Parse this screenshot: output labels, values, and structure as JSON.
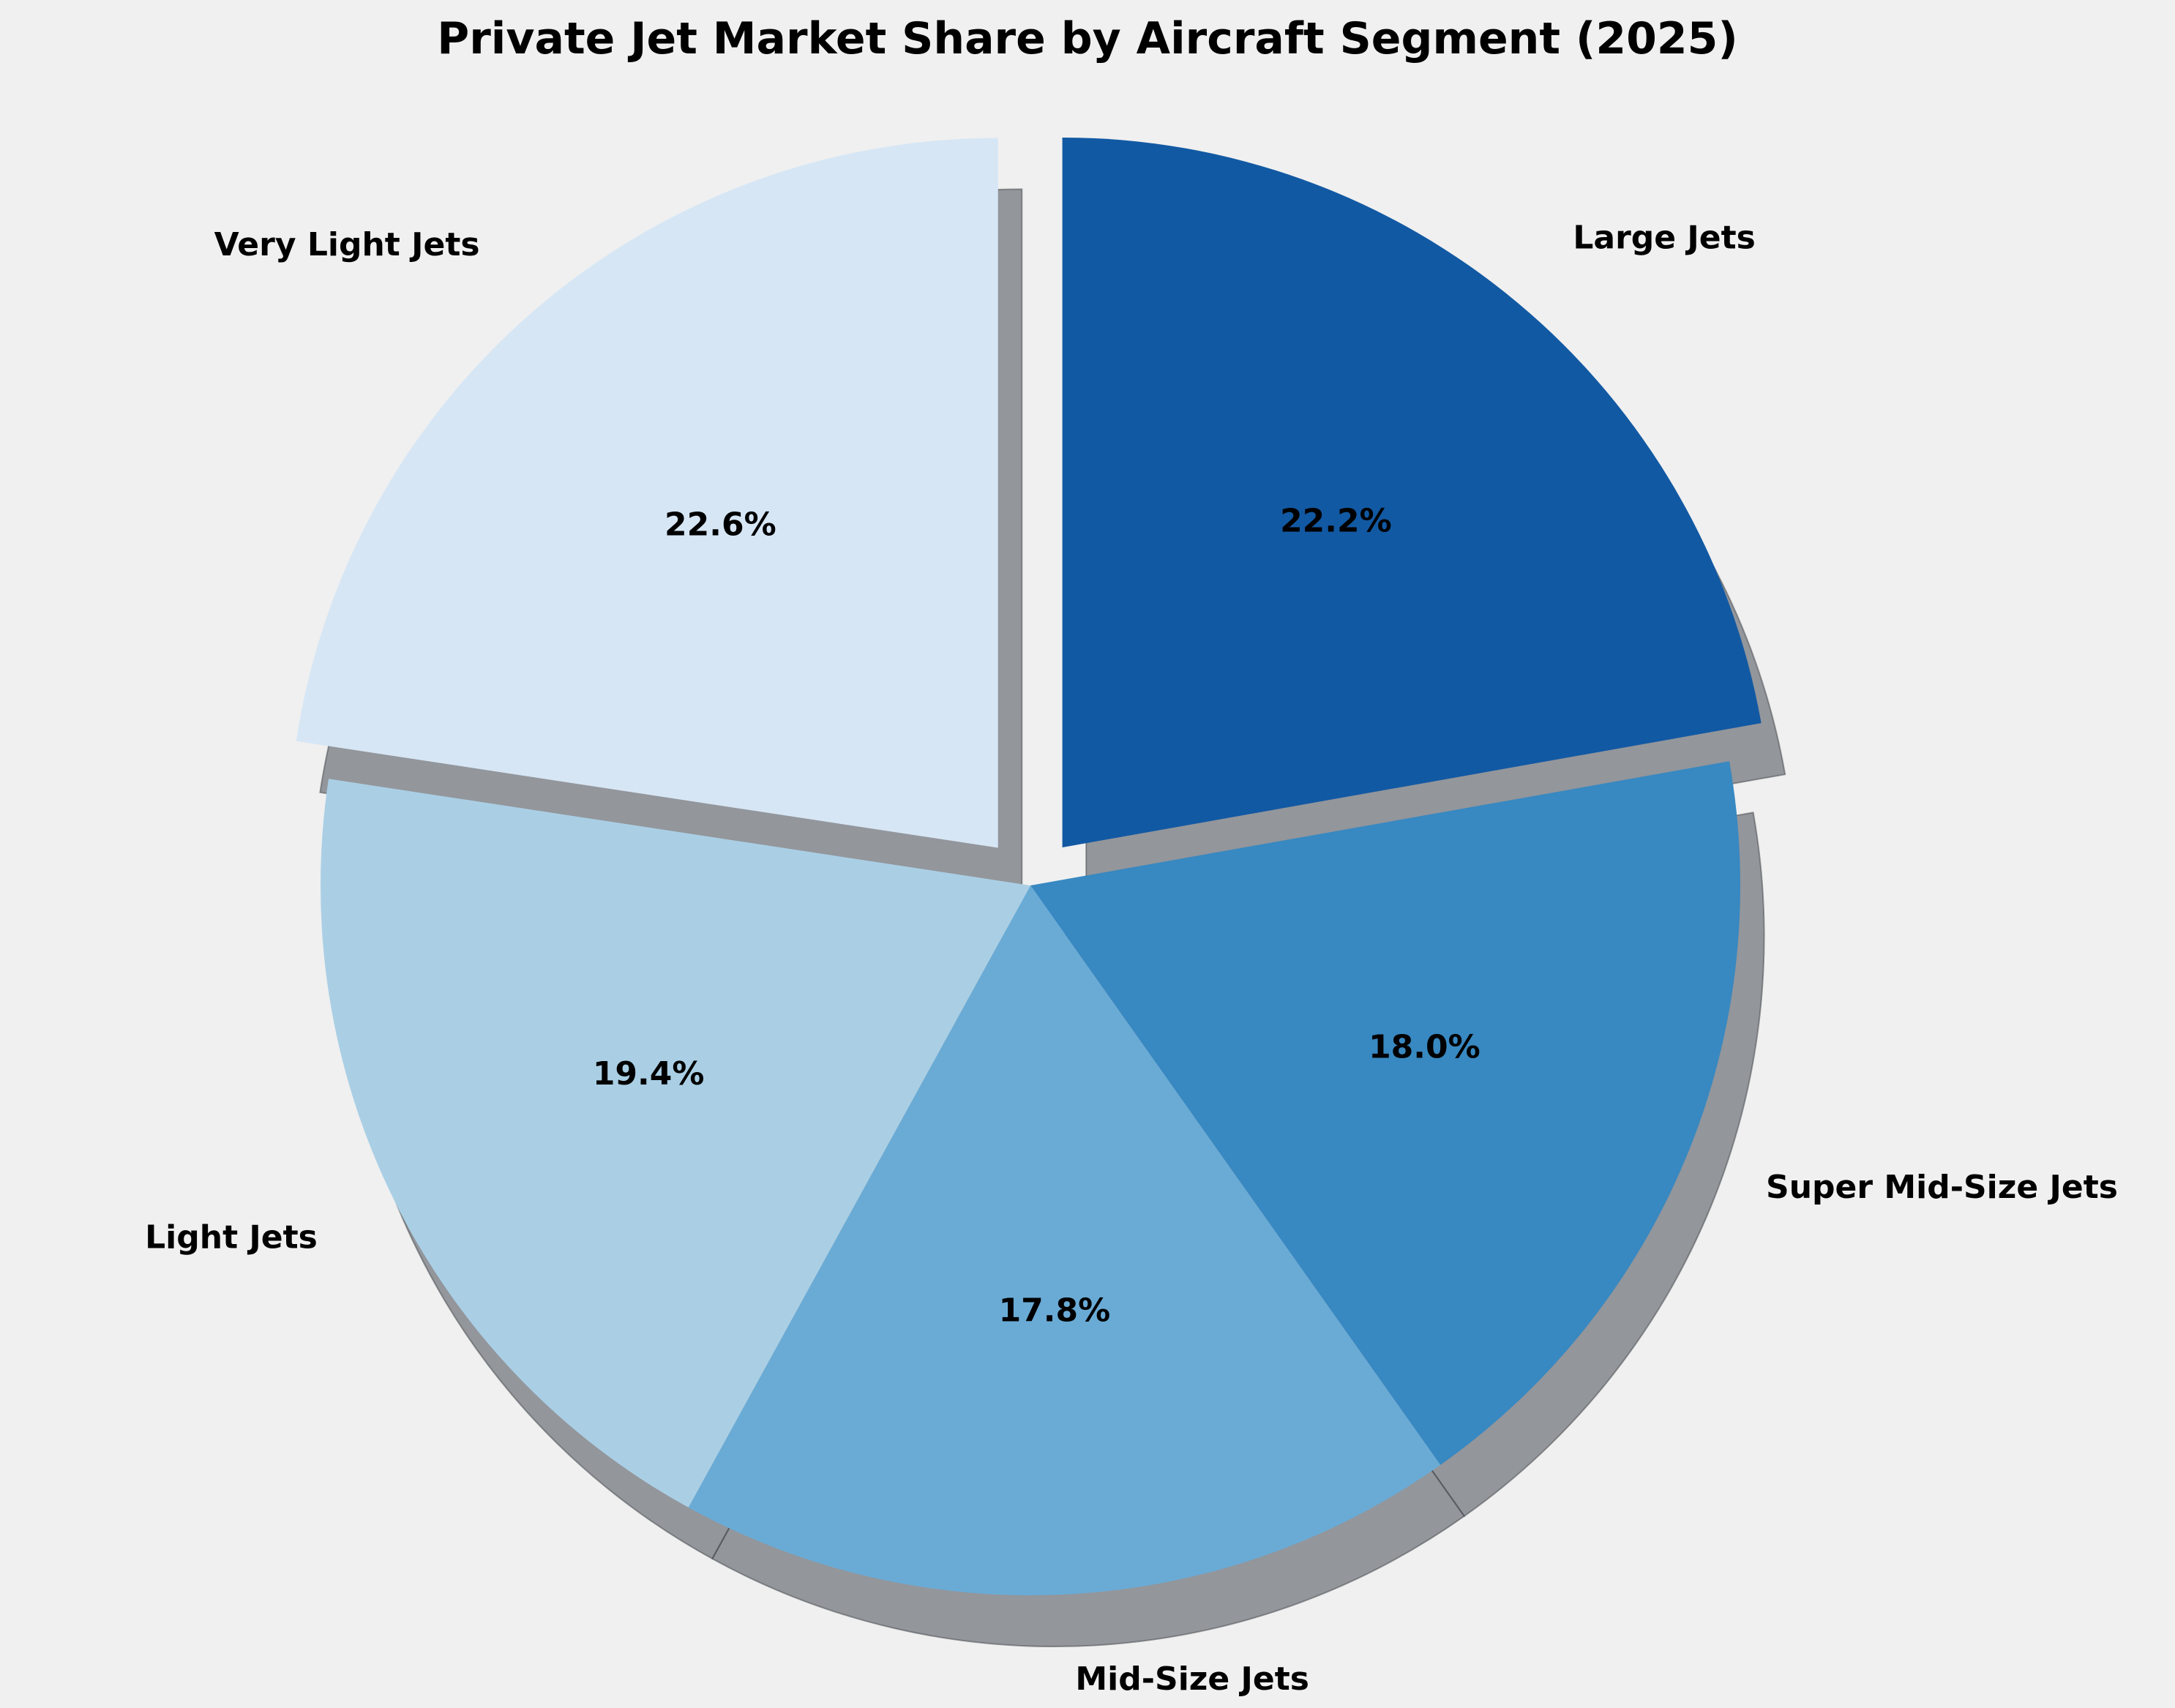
{
  "chart_data": {
    "type": "pie",
    "title": "Private Jet Market Share by Aircraft Segment (2025)",
    "categories": [
      "Large Jets",
      "Super Mid-Size Jets",
      "Mid-Size Jets",
      "Light Jets",
      "Very Light Jets"
    ],
    "values": [
      22.2,
      18.0,
      17.8,
      19.4,
      22.6
    ],
    "value_labels": [
      "22.2%",
      "18.0%",
      "17.8%",
      "19.4%",
      "22.6%"
    ],
    "colors": [
      "#1259a3",
      "#3888c1",
      "#6aabd6",
      "#aacfe5",
      "#d6e6f5"
    ],
    "exploded": [
      true,
      false,
      false,
      false,
      true
    ],
    "start_angle_deg": 90,
    "direction": "clockwise",
    "shadow": true,
    "legend": "none"
  }
}
